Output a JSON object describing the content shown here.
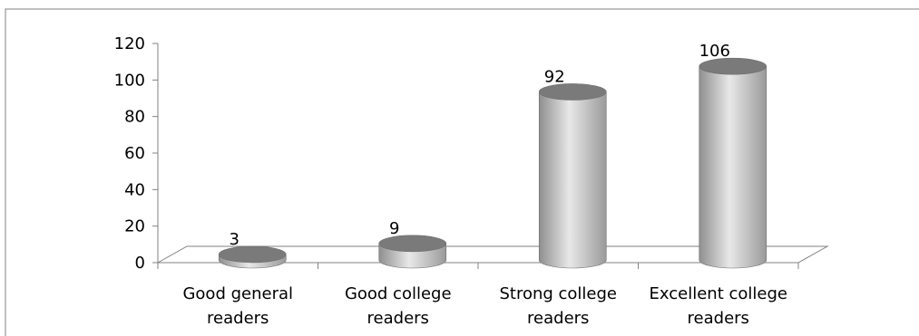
{
  "chart_data": {
    "type": "bar",
    "style": "3d-cylinder",
    "categories": [
      [
        "Good general",
        "readers"
      ],
      [
        "Good college",
        "readers"
      ],
      [
        "Strong college",
        "readers"
      ],
      [
        "Excellent college",
        "readers"
      ]
    ],
    "values": [
      3,
      9,
      92,
      106
    ],
    "data_labels": [
      "3",
      "9",
      "92",
      "106"
    ],
    "ylim": [
      0,
      120
    ],
    "yticks": [
      "0",
      "20",
      "40",
      "60",
      "80",
      "100",
      "120"
    ],
    "title": "",
    "xlabel": "",
    "ylabel": "",
    "grid": false,
    "legend": "none",
    "colors": {
      "bar_dark": "#8c8c8c",
      "bar_light": "#e6e6e6",
      "bar_top": "#7a7a7a",
      "axis": "#808080",
      "frame": "#808080"
    }
  }
}
